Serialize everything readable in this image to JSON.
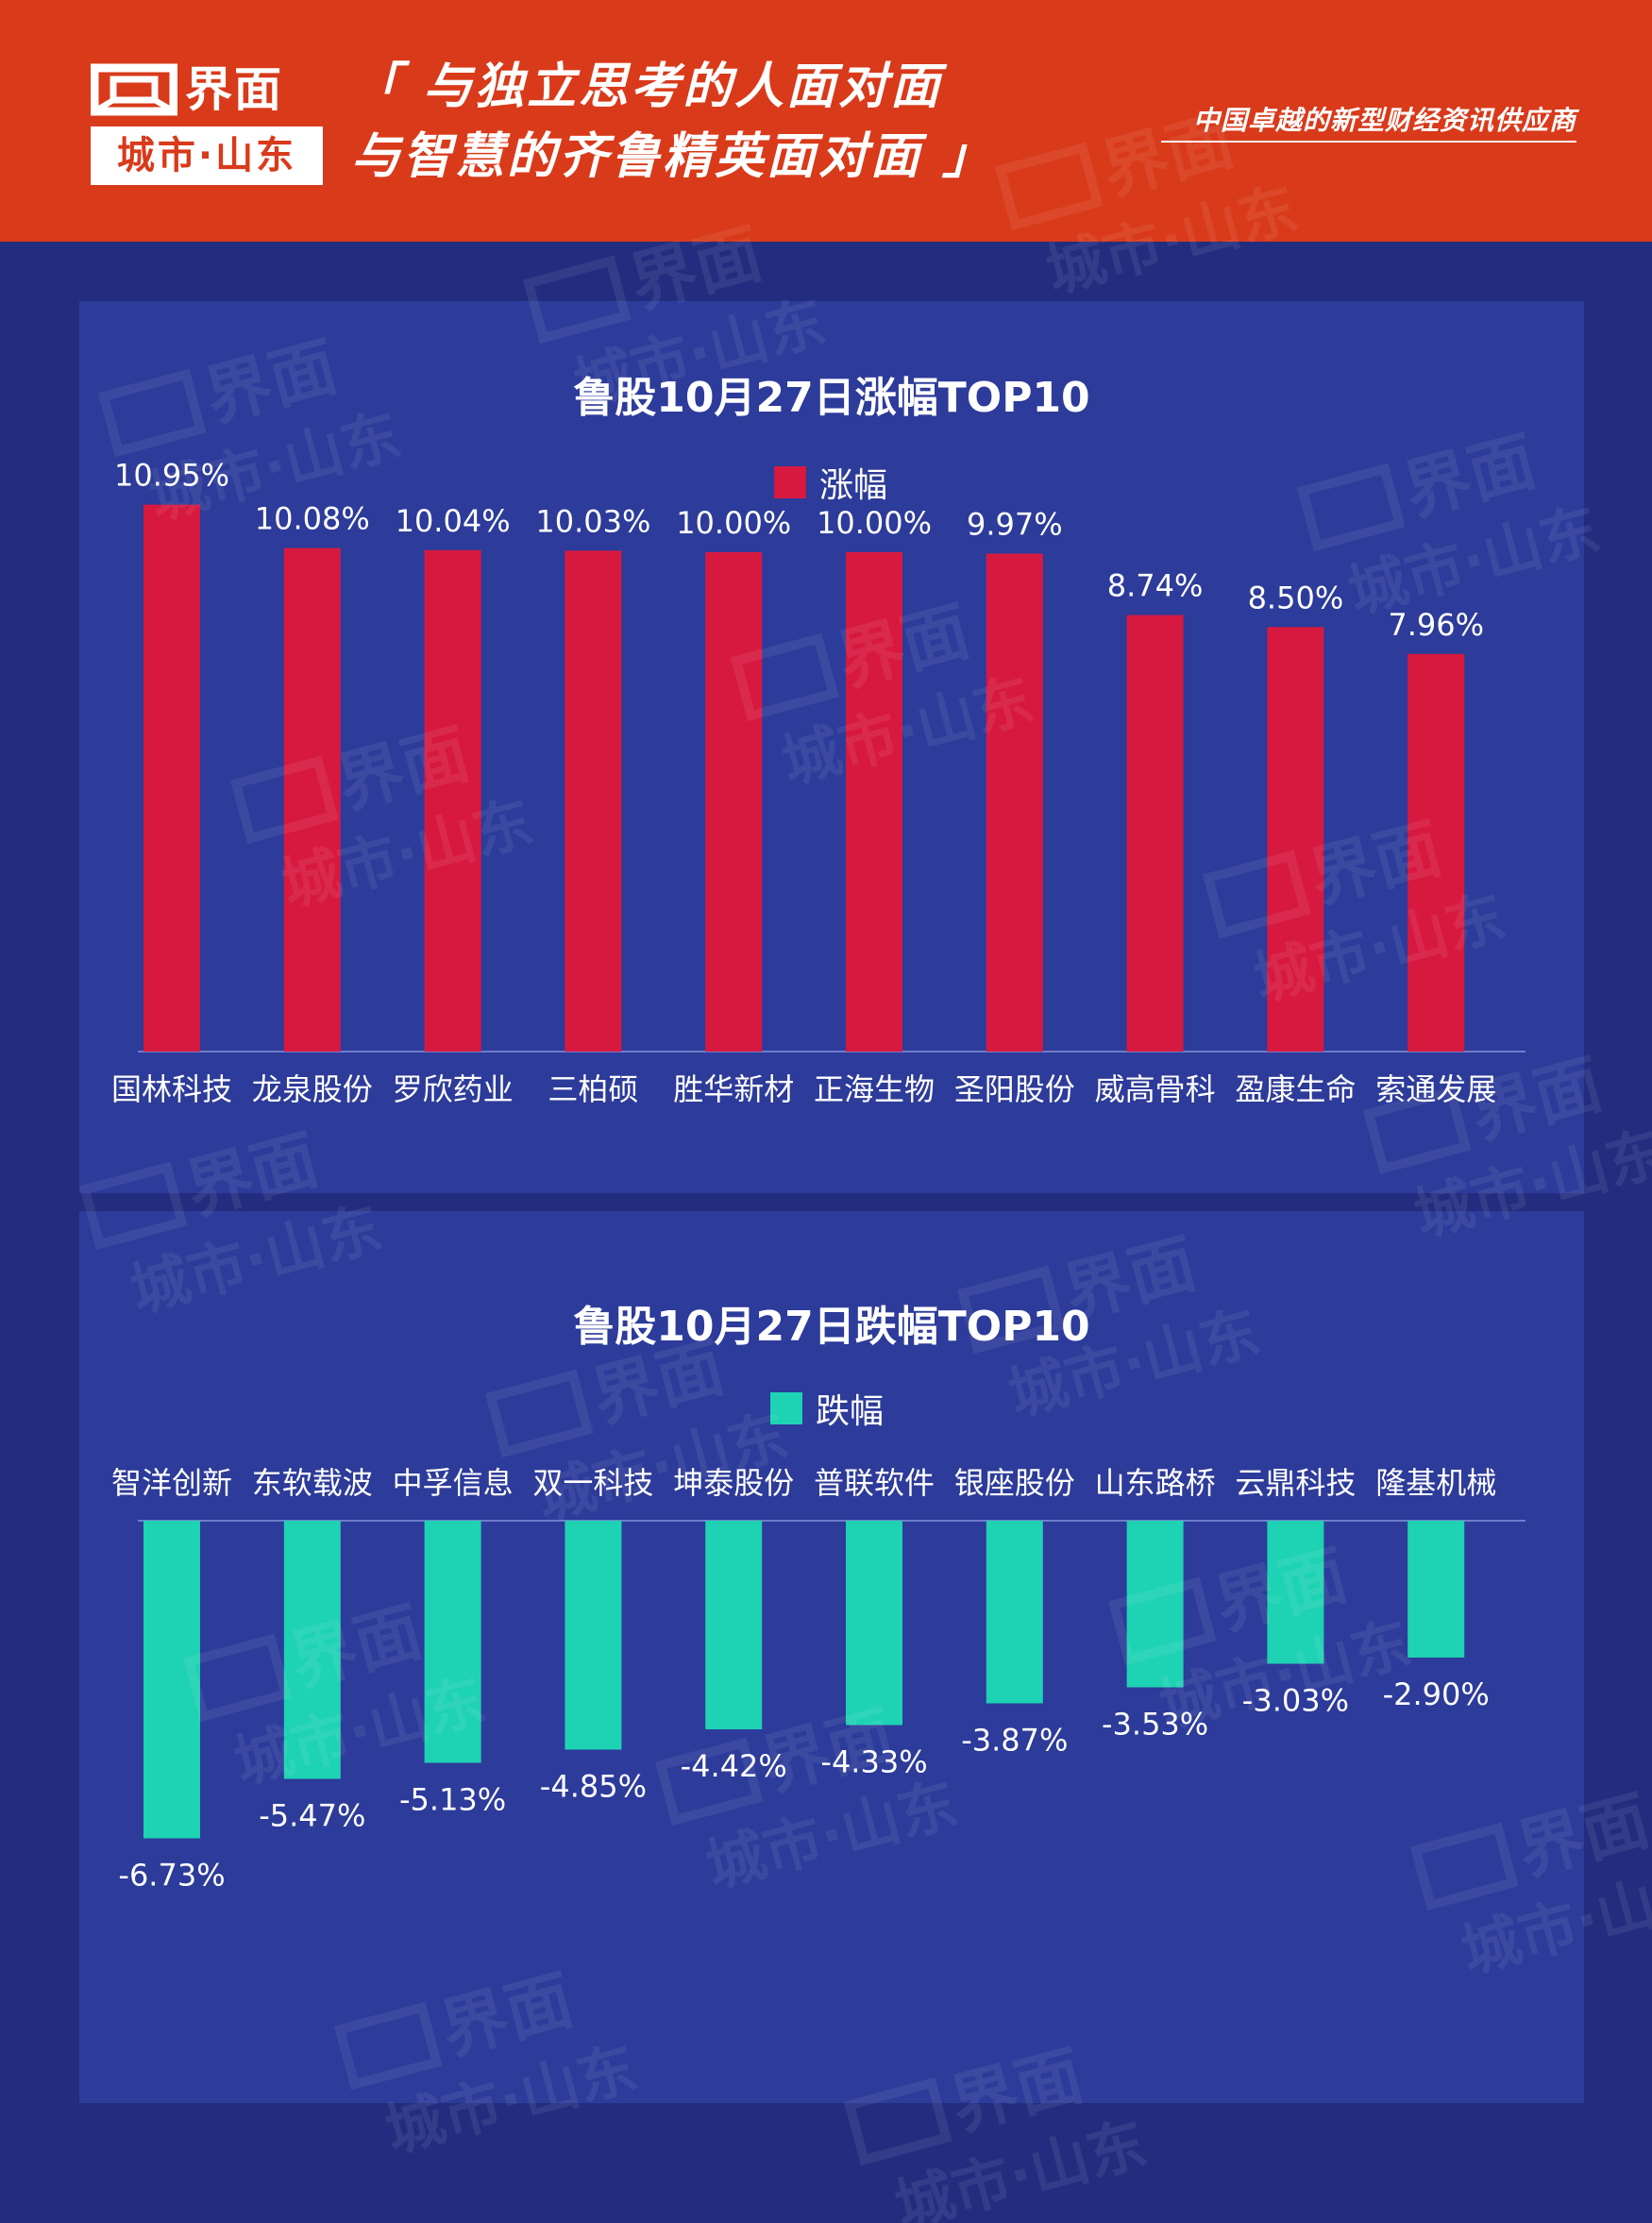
{
  "header": {
    "brand": "界面",
    "sub_brand": "城市·山东",
    "slogan_line1": "「 与独立思考的人面对面",
    "slogan_line2": "与智慧的齐鲁精英面对面 」",
    "tagline": "中国卓越的新型财经资讯供应商",
    "background_color": "#d93a1a"
  },
  "watermark": {
    "text_top": "界面",
    "text_bottom": "城市·山东"
  },
  "colors": {
    "page_background": "#232d7f",
    "panel_background": "#2d3b9a",
    "gain_bar": "#d7193f",
    "loss_bar": "#1ed2b4"
  },
  "chart_data": [
    {
      "type": "bar",
      "title": "鲁股10月27日涨幅TOP10",
      "legend": "涨幅",
      "categories": [
        "国林科技",
        "龙泉股份",
        "罗欣药业",
        "三柏硕",
        "胜华新材",
        "正海生物",
        "圣阳股份",
        "威高骨科",
        "盈康生命",
        "索通发展"
      ],
      "values": [
        10.95,
        10.08,
        10.04,
        10.03,
        10.0,
        10.0,
        9.97,
        8.74,
        8.5,
        7.96
      ],
      "labels": [
        "10.95%",
        "10.08%",
        "10.04%",
        "10.03%",
        "10.00%",
        "10.00%",
        "9.97%",
        "8.74%",
        "8.50%",
        "7.96%"
      ],
      "ylim": [
        0,
        11
      ],
      "grid": false,
      "legend_position": "top-center"
    },
    {
      "type": "bar",
      "title": "鲁股10月27日跌幅TOP10",
      "legend": "跌幅",
      "categories": [
        "智洋创新",
        "东软载波",
        "中孚信息",
        "双一科技",
        "坤泰股份",
        "普联软件",
        "银座股份",
        "山东路桥",
        "云鼎科技",
        "隆基机械"
      ],
      "values": [
        -6.73,
        -5.47,
        -5.13,
        -4.85,
        -4.42,
        -4.33,
        -3.87,
        -3.53,
        -3.03,
        -2.9
      ],
      "labels": [
        "-6.73%",
        "-5.47%",
        "-5.13%",
        "-4.85%",
        "-4.42%",
        "-4.33%",
        "-3.87%",
        "-3.53%",
        "-3.03%",
        "-2.90%"
      ],
      "ylim": [
        -7,
        0
      ],
      "grid": false,
      "legend_position": "top-center"
    }
  ]
}
